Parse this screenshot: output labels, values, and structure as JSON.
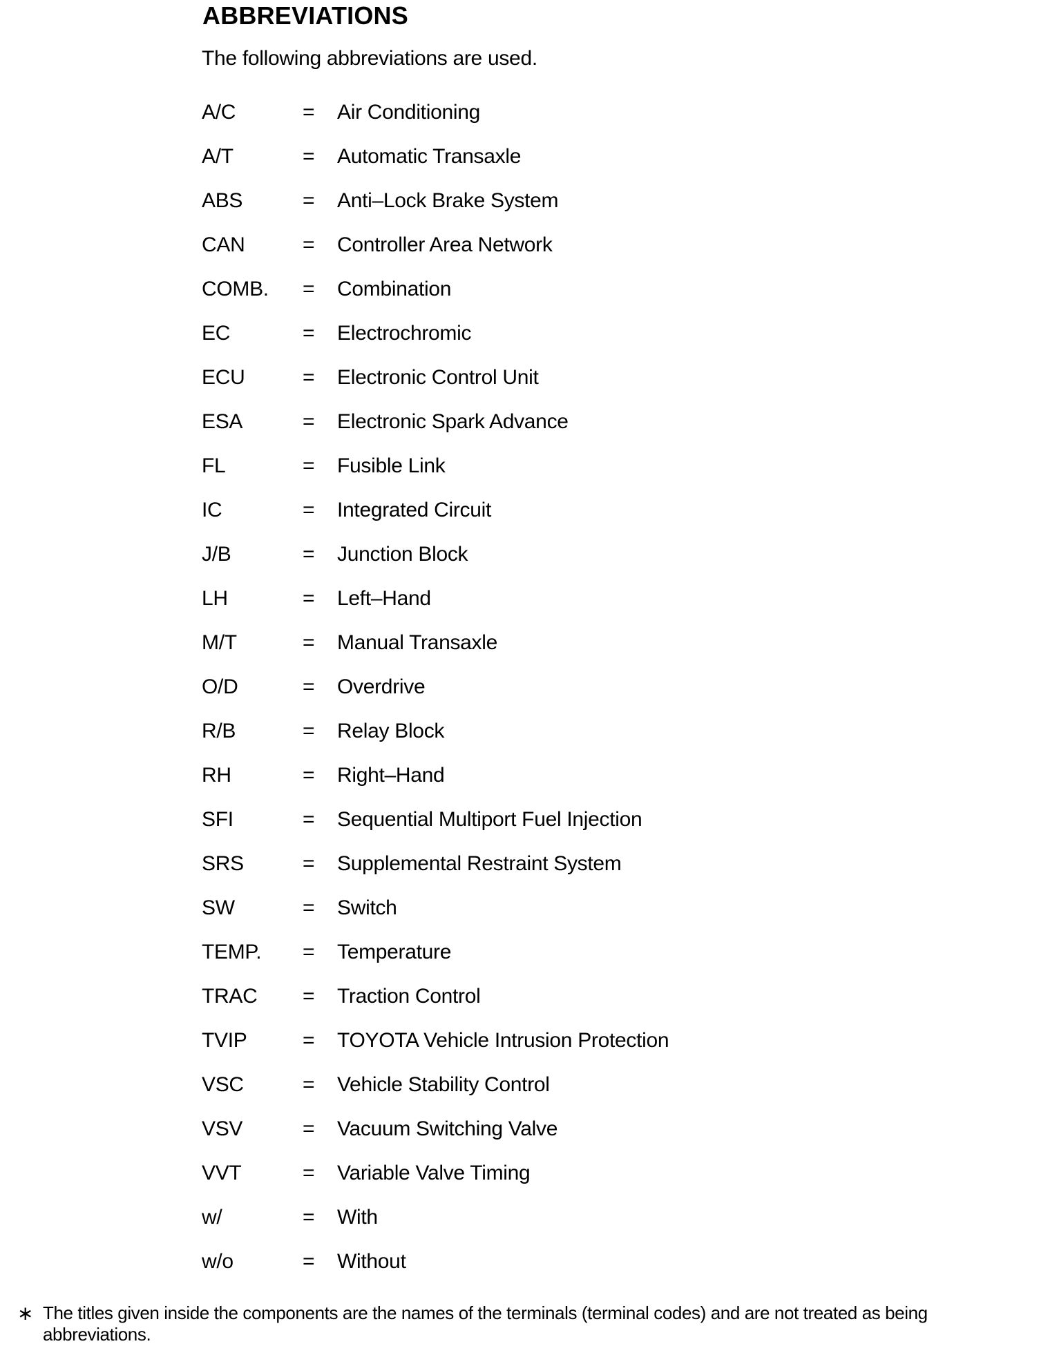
{
  "page": {
    "title": "ABBREVIATIONS",
    "intro": "The following abbreviations are used.",
    "equals_sign": "=",
    "footnote_marker": "∗",
    "footnote": "The titles given inside the components are the names of the terminals (terminal codes) and are not treated as being abbreviations.",
    "text_color": "#000000",
    "background_color": "#ffffff"
  },
  "abbreviations": [
    {
      "abbr": "A/C",
      "meaning": "Air Conditioning"
    },
    {
      "abbr": "A/T",
      "meaning": "Automatic Transaxle"
    },
    {
      "abbr": "ABS",
      "meaning": "Anti–Lock Brake System"
    },
    {
      "abbr": "CAN",
      "meaning": "Controller Area Network"
    },
    {
      "abbr": "COMB.",
      "meaning": "Combination"
    },
    {
      "abbr": "EC",
      "meaning": "Electrochromic"
    },
    {
      "abbr": "ECU",
      "meaning": "Electronic Control Unit"
    },
    {
      "abbr": "ESA",
      "meaning": "Electronic Spark Advance"
    },
    {
      "abbr": "FL",
      "meaning": "Fusible Link"
    },
    {
      "abbr": "IC",
      "meaning": "Integrated Circuit"
    },
    {
      "abbr": "J/B",
      "meaning": "Junction Block"
    },
    {
      "abbr": "LH",
      "meaning": "Left–Hand"
    },
    {
      "abbr": "M/T",
      "meaning": "Manual Transaxle"
    },
    {
      "abbr": "O/D",
      "meaning": "Overdrive"
    },
    {
      "abbr": "R/B",
      "meaning": "Relay Block"
    },
    {
      "abbr": "RH",
      "meaning": "Right–Hand"
    },
    {
      "abbr": "SFI",
      "meaning": "Sequential Multiport Fuel Injection"
    },
    {
      "abbr": "SRS",
      "meaning": "Supplemental Restraint System"
    },
    {
      "abbr": "SW",
      "meaning": "Switch"
    },
    {
      "abbr": "TEMP.",
      "meaning": "Temperature"
    },
    {
      "abbr": "TRAC",
      "meaning": "Traction Control"
    },
    {
      "abbr": "TVIP",
      "meaning": "TOYOTA Vehicle Intrusion Protection"
    },
    {
      "abbr": "VSC",
      "meaning": "Vehicle Stability Control"
    },
    {
      "abbr": "VSV",
      "meaning": "Vacuum Switching Valve"
    },
    {
      "abbr": "VVT",
      "meaning": "Variable Valve Timing"
    },
    {
      "abbr": "w/",
      "meaning": "With"
    },
    {
      "abbr": "w/o",
      "meaning": "Without"
    }
  ]
}
